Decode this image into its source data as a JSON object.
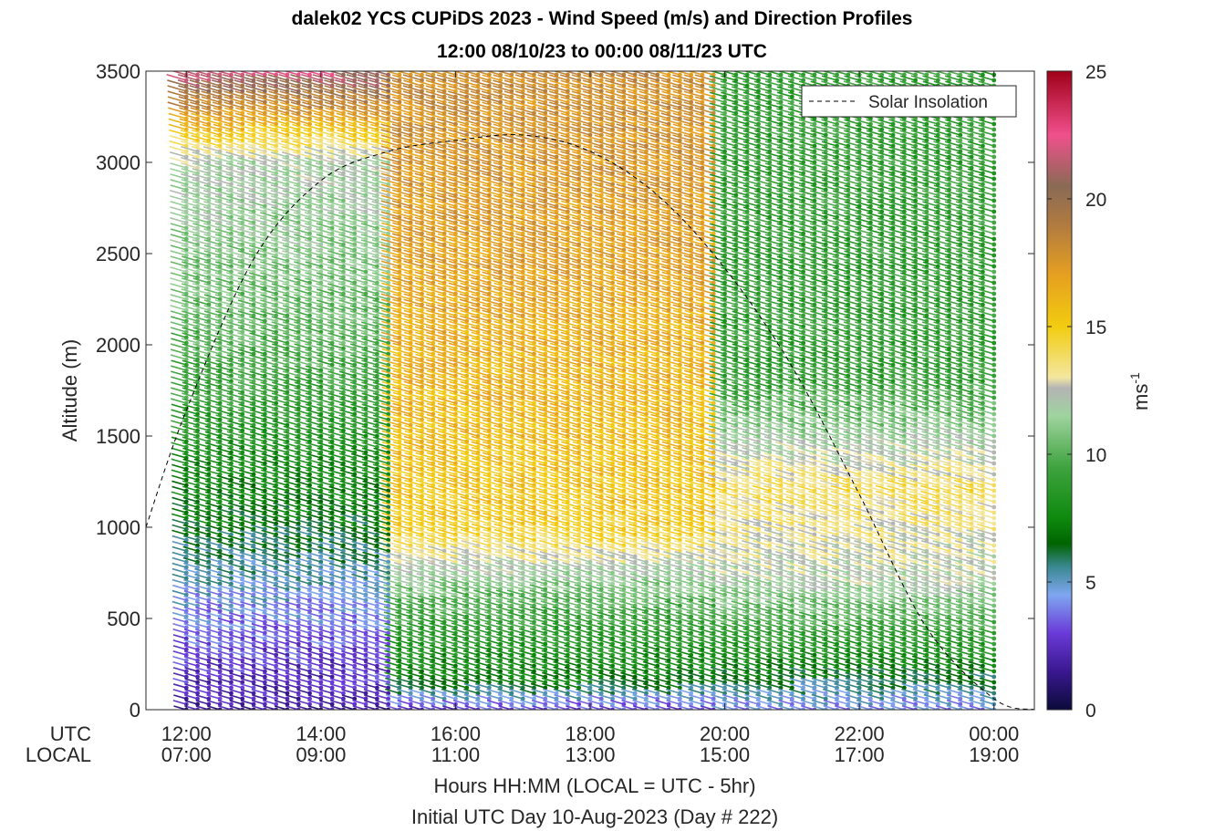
{
  "page": {
    "title_line1": "dalek02 YCS CUPiDS 2023 - Wind Speed (m/s) and Direction Profiles",
    "title_line2": "12:00 08/10/23 to 00:00 08/11/23  UTC"
  },
  "chart_data": {
    "type": "wind-barb-profile",
    "title": "dalek02 YCS CUPiDS 2023 - Wind Speed (m/s) and Direction Profiles",
    "subtitle": "12:00 08/10/23 to 00:00 08/11/23  UTC",
    "ylabel": "Altitude (m)",
    "xlabel": "Hours HH:MM  (LOCAL = UTC - 5hr)",
    "xlabel2": "Initial UTC Day 10-Aug-2023 (Day # 222)",
    "ylim": [
      0,
      3500
    ],
    "xlim_hours_utc": [
      11.4,
      24.6
    ],
    "y_ticks": [
      0,
      500,
      1000,
      1500,
      2000,
      2500,
      3000,
      3500
    ],
    "x_row_labels": [
      "UTC",
      "LOCAL"
    ],
    "x_ticks": [
      {
        "hour": 12,
        "utc": "12:00",
        "local": "07:00"
      },
      {
        "hour": 14,
        "utc": "14:00",
        "local": "09:00"
      },
      {
        "hour": 16,
        "utc": "16:00",
        "local": "11:00"
      },
      {
        "hour": 18,
        "utc": "18:00",
        "local": "13:00"
      },
      {
        "hour": 20,
        "utc": "20:00",
        "local": "15:00"
      },
      {
        "hour": 22,
        "utc": "22:00",
        "local": "17:00"
      },
      {
        "hour": 24,
        "utc": "00:00",
        "local": "19:00"
      }
    ],
    "legend": {
      "label": "Solar Insolation",
      "placement": "top-right",
      "line": "dashed black"
    },
    "colorbar": {
      "label": "ms",
      "exponent": "-1",
      "range": [
        0,
        25
      ],
      "ticks": [
        0,
        5,
        10,
        15,
        20,
        25
      ],
      "stops": [
        {
          "v": 0,
          "c": "#0b0b3a"
        },
        {
          "v": 1.5,
          "c": "#3a1890"
        },
        {
          "v": 3,
          "c": "#6a3ad8"
        },
        {
          "v": 4.5,
          "c": "#7fa6f0"
        },
        {
          "v": 5.6,
          "c": "#3a8890"
        },
        {
          "v": 6.5,
          "c": "#006400"
        },
        {
          "v": 7.5,
          "c": "#0e8a0e"
        },
        {
          "v": 9.5,
          "c": "#3fa33f"
        },
        {
          "v": 11.5,
          "c": "#9fd39f"
        },
        {
          "v": 12.6,
          "c": "#b4b4b4"
        },
        {
          "v": 13,
          "c": "#f3e7a0"
        },
        {
          "v": 15,
          "c": "#f2cc10"
        },
        {
          "v": 17,
          "c": "#e6a020"
        },
        {
          "v": 19,
          "c": "#b07a40"
        },
        {
          "v": 20.5,
          "c": "#8a6a55"
        },
        {
          "v": 22.5,
          "c": "#f0508c"
        },
        {
          "v": 25,
          "c": "#a00018"
        }
      ]
    },
    "solar_insolation_curve": [
      {
        "hour": 11.4,
        "altitude": 1000
      },
      {
        "hour": 12,
        "altitude": 1640
      },
      {
        "hour": 13,
        "altitude": 2470
      },
      {
        "hour": 14,
        "altitude": 2900
      },
      {
        "hour": 15,
        "altitude": 3060
      },
      {
        "hour": 16,
        "altitude": 3120
      },
      {
        "hour": 17,
        "altitude": 3150
      },
      {
        "hour": 18,
        "altitude": 3060
      },
      {
        "hour": 19,
        "altitude": 2820
      },
      {
        "hour": 20,
        "altitude": 2420
      },
      {
        "hour": 21,
        "altitude": 1880
      },
      {
        "hour": 22,
        "altitude": 1180
      },
      {
        "hour": 23,
        "altitude": 450
      },
      {
        "hour": 24,
        "altitude": 60
      },
      {
        "hour": 24.6,
        "altitude": 0
      }
    ],
    "profiles": {
      "interval_min": 10,
      "start_hour": 12,
      "end_hour": 24,
      "altitude_step_m": 30,
      "regimes": [
        {
          "from_hour": 12,
          "to_hour": 15,
          "speed_profile": [
            {
              "altitude": 0,
              "speed": 2
            },
            {
              "altitude": 300,
              "speed": 3
            },
            {
              "altitude": 700,
              "speed": 5
            },
            {
              "altitude": 1100,
              "speed": 7
            },
            {
              "altitude": 2000,
              "speed": 10
            },
            {
              "altitude": 3000,
              "speed": 12
            },
            {
              "altitude": 3500,
              "speed": 22
            }
          ]
        },
        {
          "from_hour": 15,
          "to_hour": 20,
          "speed_profile": [
            {
              "altitude": 0,
              "speed": 3
            },
            {
              "altitude": 150,
              "speed": 7
            },
            {
              "altitude": 600,
              "speed": 10
            },
            {
              "altitude": 1000,
              "speed": 15
            },
            {
              "altitude": 2500,
              "speed": 17
            },
            {
              "altitude": 3500,
              "speed": 18
            }
          ]
        },
        {
          "from_hour": 20,
          "to_hour": 24,
          "speed_profile": [
            {
              "altitude": 0,
              "speed": 4
            },
            {
              "altitude": 300,
              "speed": 8
            },
            {
              "altitude": 700,
              "speed": 12
            },
            {
              "altitude": 1200,
              "speed": 14
            },
            {
              "altitude": 1800,
              "speed": 9
            }
          ]
        }
      ],
      "direction_deg_from": 240
    }
  }
}
